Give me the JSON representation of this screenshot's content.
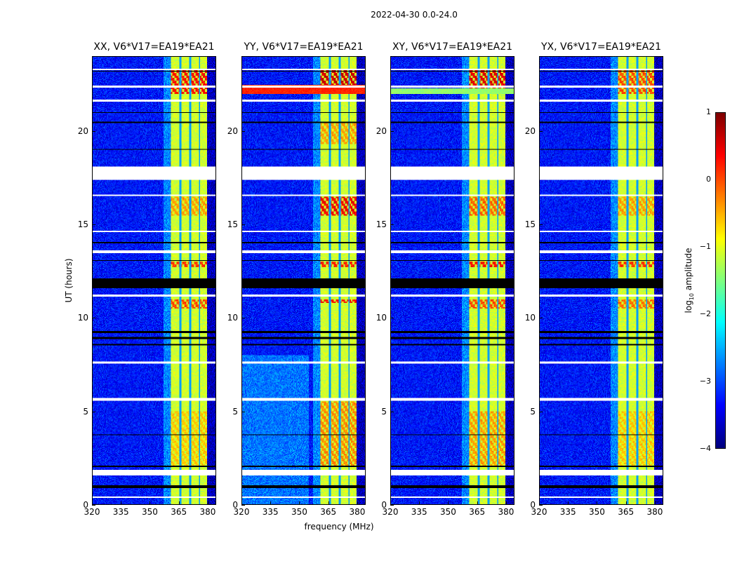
{
  "chart_data": {
    "type": "heatmap",
    "title": "2022-04-30 0.0-24.0",
    "xlabel": "frequency (MHz)",
    "ylabel": "UT (hours)",
    "xlim": [
      320,
      384.4
    ],
    "ylim": [
      0,
      24
    ],
    "xticks": [
      320,
      335,
      350,
      365,
      380
    ],
    "yticks": [
      0,
      5,
      10,
      15,
      20
    ],
    "colorbar": {
      "label_main": "log",
      "label_sub": "10",
      "label_rest": " amplitude",
      "range": [
        -4,
        1
      ],
      "ticks": [
        1,
        0,
        -1,
        -2,
        -3,
        -4
      ],
      "colormap": "jet"
    },
    "structure": {
      "background_level": -3.3,
      "band_mhz": [
        361,
        380
      ],
      "band_level": -1.1,
      "band_notches_mhz": [
        366,
        371,
        376
      ],
      "flagged_white_hours": [
        [
          0.35,
          0.42
        ],
        [
          1.55,
          1.85
        ],
        [
          5.55,
          5.7
        ],
        [
          7.55,
          7.65
        ],
        [
          11.15,
          11.25
        ],
        [
          13.45,
          13.6
        ],
        [
          14.6,
          14.65
        ],
        [
          16.55,
          16.6
        ],
        [
          17.4,
          18.1
        ],
        [
          21.6,
          21.7
        ],
        [
          22.35,
          22.45
        ],
        [
          23.3,
          23.35
        ]
      ],
      "flagged_black_hours": [
        [
          0.85,
          1.0
        ],
        [
          2.0,
          2.05
        ],
        [
          3.7,
          3.75
        ],
        [
          8.5,
          8.6
        ],
        [
          8.85,
          8.95
        ],
        [
          9.2,
          9.3
        ],
        [
          11.6,
          12.1
        ],
        [
          13.05,
          13.1
        ],
        [
          14.0,
          14.05
        ],
        [
          19.0,
          19.05
        ],
        [
          20.45,
          20.5
        ],
        [
          21.0,
          21.05
        ],
        [
          23.2,
          23.25
        ]
      ]
    },
    "panels": [
      {
        "title": "XX, V6*V17=EA19*EA21",
        "hot": [
          [
            22.0,
            23.3,
            0.3
          ],
          [
            12.7,
            13.0,
            0.1
          ],
          [
            10.5,
            11.0,
            0.0
          ],
          [
            15.5,
            16.5,
            -0.4
          ],
          [
            2.0,
            5.0,
            -0.6
          ]
        ],
        "wide_stripe": []
      },
      {
        "title": "YY, V6*V17=EA19*EA21",
        "hot": [
          [
            22.3,
            23.3,
            0.6
          ],
          [
            15.5,
            16.5,
            0.4
          ],
          [
            10.8,
            11.0,
            0.3
          ],
          [
            12.7,
            13.0,
            0.2
          ],
          [
            19.3,
            20.5,
            -0.4
          ],
          [
            2.0,
            5.5,
            -0.3
          ]
        ],
        "wide_stripe": [
          [
            22.0,
            22.5,
            0.2
          ]
        ]
      },
      {
        "title": "XY, V6*V17=EA19*EA21",
        "hot": [
          [
            22.0,
            23.3,
            0.5
          ],
          [
            15.5,
            16.5,
            -0.1
          ],
          [
            12.7,
            13.0,
            0.3
          ],
          [
            10.5,
            11.0,
            0.0
          ],
          [
            2.0,
            5.0,
            -0.4
          ]
        ],
        "wide_stripe": [
          [
            22.0,
            22.3,
            -1.4
          ]
        ]
      },
      {
        "title": "YX, V6*V17=EA19*EA21",
        "hot": [
          [
            22.0,
            23.3,
            0.0
          ],
          [
            12.7,
            13.0,
            0.1
          ],
          [
            10.5,
            11.0,
            -0.2
          ],
          [
            15.5,
            16.5,
            -0.4
          ],
          [
            2.0,
            5.0,
            -0.6
          ]
        ],
        "wide_stripe": []
      }
    ]
  }
}
